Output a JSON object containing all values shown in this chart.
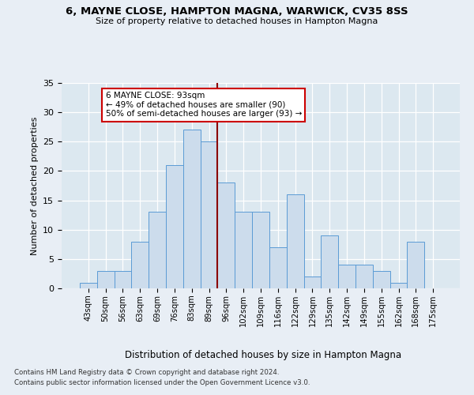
{
  "title": "6, MAYNE CLOSE, HAMPTON MAGNA, WARWICK, CV35 8SS",
  "subtitle": "Size of property relative to detached houses in Hampton Magna",
  "xlabel": "Distribution of detached houses by size in Hampton Magna",
  "ylabel": "Number of detached properties",
  "categories": [
    "43sqm",
    "50sqm",
    "56sqm",
    "63sqm",
    "69sqm",
    "76sqm",
    "83sqm",
    "89sqm",
    "96sqm",
    "102sqm",
    "109sqm",
    "116sqm",
    "122sqm",
    "129sqm",
    "135sqm",
    "142sqm",
    "149sqm",
    "155sqm",
    "162sqm",
    "168sqm",
    "175sqm"
  ],
  "values": [
    1,
    3,
    3,
    8,
    13,
    21,
    27,
    25,
    18,
    13,
    13,
    7,
    16,
    2,
    9,
    4,
    4,
    3,
    1,
    8,
    0
  ],
  "bar_color": "#ccdcec",
  "bar_edge_color": "#5b9bd5",
  "vline_color": "#8b0000",
  "annotation_text": "6 MAYNE CLOSE: 93sqm\n← 49% of detached houses are smaller (90)\n50% of semi-detached houses are larger (93) →",
  "annotation_box_edge": "#cc0000",
  "annotation_box_face": "#ffffff",
  "ylim": [
    0,
    35
  ],
  "yticks": [
    0,
    5,
    10,
    15,
    20,
    25,
    30,
    35
  ],
  "background_color": "#dce8f0",
  "grid_color": "#ffffff",
  "fig_background": "#e8eef5",
  "footer1": "Contains HM Land Registry data © Crown copyright and database right 2024.",
  "footer2": "Contains public sector information licensed under the Open Government Licence v3.0."
}
